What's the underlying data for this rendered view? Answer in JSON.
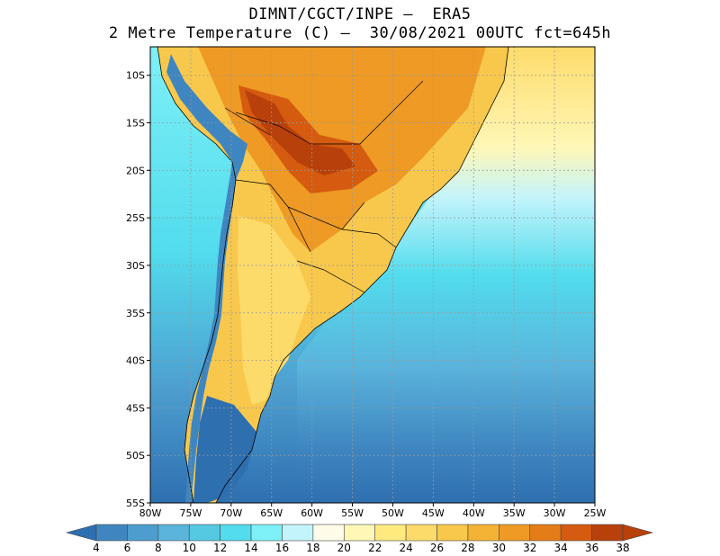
{
  "title": {
    "line1": "DIMNT/CGCT/INPE –  ERA5",
    "line2": "2 Metre Temperature (C) –  30/08/2021 00UTC fct=645h"
  },
  "map": {
    "lon_range": [
      -80,
      -25
    ],
    "lat_range": [
      -55,
      -7
    ],
    "lon_ticks": [
      -80,
      -75,
      -70,
      -65,
      -60,
      -55,
      -50,
      -45,
      -40,
      -35,
      -30,
      -25
    ],
    "lon_labels": [
      "80W",
      "75W",
      "70W",
      "65W",
      "60W",
      "55W",
      "50W",
      "45W",
      "40W",
      "35W",
      "30W",
      "25W"
    ],
    "lat_ticks": [
      -10,
      -15,
      -20,
      -25,
      -30,
      -35,
      -40,
      -45,
      -50,
      -55
    ],
    "lat_labels": [
      "10S",
      "15S",
      "20S",
      "25S",
      "30S",
      "35S",
      "40S",
      "45S",
      "50S",
      "55S"
    ],
    "grid": "dotted"
  },
  "colorbar": {
    "values": [
      4,
      6,
      8,
      10,
      12,
      14,
      16,
      18,
      20,
      22,
      24,
      26,
      28,
      30,
      32,
      34,
      36,
      38
    ],
    "labels": [
      "4",
      "6",
      "8",
      "10",
      "12",
      "14",
      "16",
      "18",
      "20",
      "22",
      "24",
      "26",
      "28",
      "30",
      "32",
      "34",
      "36",
      "38"
    ],
    "colors": [
      "#2e6fb0",
      "#3f86c0",
      "#4d9ecf",
      "#5ab4dc",
      "#55c8e2",
      "#52dced",
      "#7ef0f7",
      "#c4f4fb",
      "#fffbe9",
      "#fff7b6",
      "#ffea7f",
      "#fddb6a",
      "#f8c84d",
      "#f5b335",
      "#ee9a24",
      "#e47d17",
      "#d45b0f",
      "#b8400a",
      "#9c2f06"
    ],
    "under_color": "#2e6fb0",
    "over_color": "#b8400a"
  }
}
